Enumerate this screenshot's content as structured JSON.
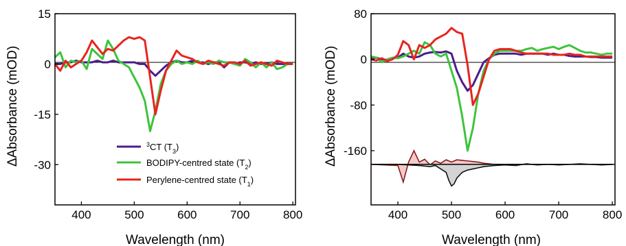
{
  "chart_data": [
    {
      "type": "line",
      "xlabel": "Wavelength (nm)",
      "ylabel": "ΔAbsorbance (mOD)",
      "xlim": [
        350,
        805
      ],
      "ylim": [
        -42,
        15
      ],
      "xticks": [
        "400",
        "500",
        "600",
        "700",
        "800"
      ],
      "xtick_values": [
        400,
        500,
        600,
        700,
        800
      ],
      "yticks": [
        "15",
        "0",
        "-15",
        "-30"
      ],
      "ytick_values": [
        15,
        0,
        -15,
        -30
      ],
      "zero_line": true,
      "legend": {
        "placement": "bottom-right",
        "entries": [
          {
            "sup": "3",
            "main": "CT (T",
            "sub": "3",
            "end": ")",
            "color": "#4B1C8C"
          },
          {
            "sup": "",
            "main": "BODIPY-centred state (T",
            "sub": "2",
            "end": ")",
            "color": "#3CC43C"
          },
          {
            "sup": "",
            "main": "Perylene-centred state (T",
            "sub": "1",
            "end": ")",
            "color": "#E8231F"
          }
        ]
      },
      "series": [
        {
          "color": "#4B1C8C",
          "x": [
            350,
            360,
            370,
            380,
            390,
            400,
            410,
            420,
            430,
            440,
            450,
            460,
            470,
            480,
            490,
            500,
            510,
            520,
            530,
            540,
            550,
            560,
            570,
            580,
            590,
            600,
            610,
            620,
            630,
            640,
            650,
            660,
            670,
            680,
            690,
            700,
            710,
            720,
            730,
            740,
            750,
            760,
            770,
            780,
            790,
            800
          ],
          "y": [
            0,
            0,
            0.5,
            0.5,
            1,
            0.5,
            0.5,
            0.5,
            1,
            0.5,
            0.5,
            1,
            0.5,
            0.5,
            0.5,
            0.5,
            0,
            0,
            -2,
            -3.5,
            -2,
            -0.5,
            0.5,
            1,
            0.5,
            0.5,
            1,
            0.5,
            0.5,
            0,
            0.5,
            0.5,
            -1,
            0.5,
            0,
            0.5,
            0.5,
            0,
            0.5,
            0,
            0,
            0.5,
            0,
            0,
            0,
            0
          ]
        },
        {
          "color": "#3CC43C",
          "x": [
            350,
            360,
            370,
            380,
            390,
            400,
            410,
            420,
            430,
            440,
            450,
            460,
            470,
            480,
            490,
            500,
            510,
            520,
            530,
            540,
            550,
            560,
            570,
            580,
            590,
            600,
            610,
            620,
            630,
            640,
            650,
            660,
            670,
            680,
            690,
            700,
            710,
            720,
            730,
            740,
            750,
            760,
            770,
            780,
            790,
            800
          ],
          "y": [
            2,
            3.5,
            -1,
            1,
            0.5,
            1,
            -1.5,
            4.5,
            3,
            1.5,
            7,
            4.5,
            1,
            0,
            -1,
            -4,
            -7,
            -11,
            -20,
            -14,
            -6,
            -2,
            0,
            1,
            0,
            0.5,
            0,
            1,
            0,
            0.5,
            0,
            1,
            0.5,
            0.5,
            0,
            -0.5,
            1.5,
            0.5,
            -1,
            0.5,
            -1,
            0.5,
            -1.5,
            -1,
            0,
            0
          ]
        },
        {
          "color": "#E8231F",
          "x": [
            350,
            360,
            370,
            380,
            390,
            400,
            410,
            420,
            430,
            440,
            450,
            460,
            470,
            480,
            490,
            500,
            510,
            520,
            530,
            540,
            550,
            560,
            570,
            580,
            590,
            600,
            610,
            620,
            630,
            640,
            650,
            660,
            670,
            680,
            690,
            700,
            710,
            720,
            730,
            740,
            750,
            760,
            770,
            780,
            790,
            800
          ],
          "y": [
            0,
            -2,
            1,
            -1,
            0,
            1,
            3.5,
            7,
            5,
            3,
            4.5,
            4,
            5.5,
            7,
            8,
            7.5,
            8,
            7,
            -4,
            -15,
            -8,
            -2,
            1,
            4,
            2.5,
            2,
            1.5,
            0.5,
            0,
            1,
            0.5,
            0,
            -0.5,
            0.5,
            0.5,
            0,
            1,
            -0.5,
            0,
            0.5,
            0,
            -0.5,
            1,
            0.5,
            0,
            0
          ]
        }
      ]
    },
    {
      "type": "area",
      "xlabel": "Wavelength (nm)",
      "ylabel": "ΔAbsorbance (mOD)",
      "xlim": [
        350,
        805
      ],
      "ylim": [
        -255,
        80
      ],
      "xticks": [
        "400",
        "500",
        "600",
        "700",
        "800"
      ],
      "xtick_values": [
        400,
        500,
        600,
        700,
        800
      ],
      "yticks": [
        "80",
        "0",
        "-80",
        "-160"
      ],
      "ytick_values": [
        80,
        0,
        -80,
        -160
      ],
      "zero_line": true,
      "series": [
        {
          "color": "#4B1C8C",
          "x": [
            350,
            360,
            370,
            380,
            390,
            400,
            410,
            420,
            430,
            440,
            450,
            460,
            470,
            480,
            490,
            500,
            510,
            520,
            530,
            540,
            550,
            560,
            570,
            580,
            590,
            600,
            610,
            620,
            630,
            640,
            650,
            660,
            670,
            680,
            690,
            700,
            710,
            720,
            730,
            740,
            750,
            760,
            770,
            780,
            790,
            800
          ],
          "y": [
            2,
            3,
            0,
            -1,
            2,
            3,
            10,
            5,
            3,
            5,
            10,
            12,
            13,
            12,
            14,
            10,
            -20,
            -40,
            -55,
            -45,
            -25,
            -5,
            2,
            8,
            10,
            10,
            10,
            10,
            8,
            10,
            10,
            10,
            10,
            8,
            10,
            8,
            8,
            6,
            5,
            5,
            5,
            4,
            4,
            3,
            3,
            3
          ]
        },
        {
          "color": "#3CC43C",
          "x": [
            350,
            360,
            370,
            380,
            390,
            400,
            410,
            420,
            430,
            440,
            450,
            460,
            470,
            480,
            490,
            500,
            510,
            520,
            530,
            540,
            550,
            560,
            570,
            580,
            590,
            600,
            610,
            620,
            630,
            640,
            650,
            660,
            670,
            680,
            690,
            700,
            710,
            720,
            730,
            740,
            750,
            760,
            770,
            780,
            790,
            800
          ],
          "y": [
            5,
            3,
            -5,
            0,
            3,
            2,
            5,
            10,
            15,
            10,
            30,
            25,
            10,
            5,
            10,
            -20,
            -50,
            -100,
            -160,
            -120,
            -60,
            -20,
            0,
            10,
            15,
            15,
            15,
            15,
            15,
            18,
            20,
            15,
            18,
            20,
            22,
            18,
            22,
            25,
            20,
            15,
            12,
            12,
            10,
            8,
            10,
            10
          ]
        },
        {
          "color": "#E8231F",
          "x": [
            350,
            360,
            370,
            380,
            390,
            400,
            410,
            420,
            430,
            440,
            450,
            460,
            470,
            480,
            490,
            500,
            510,
            520,
            530,
            540,
            550,
            560,
            570,
            580,
            590,
            600,
            610,
            620,
            630,
            640,
            650,
            660,
            670,
            680,
            690,
            700,
            710,
            720,
            730,
            740,
            750,
            760,
            770,
            780,
            790,
            800
          ],
          "y": [
            0,
            -2,
            2,
            -3,
            0,
            8,
            32,
            25,
            0,
            25,
            20,
            25,
            35,
            40,
            45,
            55,
            48,
            45,
            -10,
            -80,
            -60,
            -30,
            0,
            15,
            18,
            18,
            18,
            15,
            12,
            10,
            10,
            10,
            10,
            10,
            8,
            8,
            8,
            10,
            8,
            8,
            5,
            5,
            5,
            5,
            5,
            5
          ]
        }
      ],
      "difference_traces": [
        {
          "fill": "#F2CACA",
          "line": "#8B1A1A",
          "x": [
            350,
            400,
            410,
            420,
            425,
            430,
            440,
            450,
            460,
            470,
            480,
            490,
            500,
            510,
            520,
            530,
            540,
            550,
            560,
            570,
            580,
            600,
            620,
            640,
            660,
            680,
            700,
            720,
            740,
            760,
            780,
            800
          ],
          "y": [
            -184,
            -186,
            -215,
            -180,
            -170,
            -160,
            -180,
            -175,
            -185,
            -178,
            -182,
            -176,
            -180,
            -176,
            -177,
            -178,
            -179,
            -180,
            -182,
            -183,
            -184,
            -184,
            -184,
            -184,
            -184,
            -184,
            -184,
            -184,
            -184,
            -184,
            -184,
            -184
          ]
        },
        {
          "fill": "#D4D4D4",
          "line": "#111111",
          "x": [
            350,
            400,
            440,
            460,
            470,
            480,
            490,
            495,
            500,
            505,
            510,
            520,
            530,
            540,
            550,
            560,
            580,
            600,
            620,
            640,
            660,
            680,
            700,
            720,
            740,
            760,
            780,
            800
          ],
          "y": [
            -184,
            -184,
            -186,
            -188,
            -186,
            -192,
            -198,
            -212,
            -222,
            -218,
            -208,
            -198,
            -194,
            -192,
            -190,
            -188,
            -186,
            -185,
            -186,
            -183,
            -185,
            -184,
            -185,
            -184,
            -183,
            -184,
            -185,
            -184
          ]
        }
      ]
    }
  ]
}
